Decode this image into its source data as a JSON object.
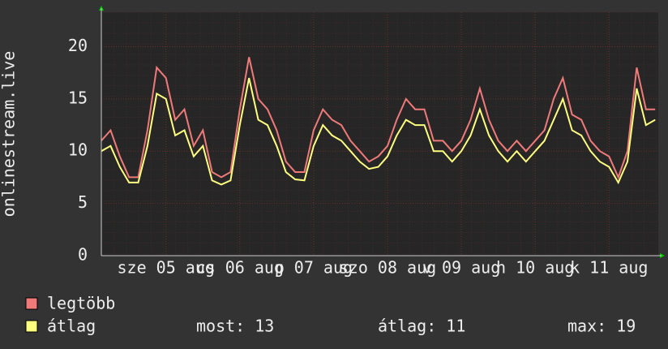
{
  "chart_data": {
    "type": "line",
    "y_label": "onlinestream.live",
    "x": [
      -9,
      -6,
      -3,
      0,
      3,
      6,
      9,
      12,
      15,
      18,
      21,
      24,
      27,
      30,
      33,
      36,
      39,
      42,
      45,
      48,
      51,
      54,
      57,
      60,
      63,
      66,
      69,
      72,
      75,
      78,
      81,
      84,
      87,
      90,
      93,
      96,
      99,
      102,
      105,
      108,
      111,
      114,
      117,
      120,
      123,
      126,
      129,
      132,
      135,
      138,
      141,
      144,
      147,
      150,
      153,
      156,
      159,
      162,
      165,
      168,
      171
    ],
    "series": [
      {
        "name": "legtöbb",
        "color": "#f07a7a",
        "values": [
          11,
          12,
          9.5,
          7.5,
          7.5,
          12,
          18,
          17,
          13,
          14,
          10.5,
          12,
          8,
          7.5,
          8,
          14,
          19,
          15,
          14,
          12,
          9,
          8,
          8,
          12,
          14,
          13,
          12.5,
          11,
          10,
          9,
          9.5,
          10.5,
          13,
          15,
          14,
          14,
          11,
          11,
          10,
          11,
          13,
          16,
          13,
          11,
          10,
          11,
          10,
          11,
          12,
          15,
          17,
          13.5,
          13,
          11,
          10,
          9.5,
          7.5,
          10,
          18,
          14,
          14
        ]
      },
      {
        "name": "átlag",
        "color": "#ffff80",
        "values": [
          10,
          10.5,
          8.5,
          7,
          7,
          10.5,
          15.5,
          15,
          11.5,
          12,
          9.5,
          10.5,
          7.2,
          6.8,
          7.2,
          12.5,
          17,
          13,
          12.5,
          10.5,
          8,
          7.3,
          7.2,
          10.5,
          12.5,
          11.5,
          11,
          10,
          9,
          8.3,
          8.5,
          9.5,
          11.5,
          13,
          12.5,
          12.5,
          10,
          10,
          9,
          10,
          11.5,
          14,
          11.5,
          10,
          9,
          10,
          9,
          10,
          11,
          13,
          15,
          12,
          11.5,
          10,
          9,
          8.5,
          7,
          9,
          16,
          12.5,
          13
        ]
      }
    ],
    "xlim": [
      -9,
      172
    ],
    "xticks": [
      {
        "value": 12,
        "label": "sze 05 aug"
      },
      {
        "value": 36,
        "label": "cs 06 aug"
      },
      {
        "value": 60,
        "label": "p 07 aug"
      },
      {
        "value": 84,
        "label": "szo 08 aug"
      },
      {
        "value": 108,
        "label": "v 09 aug"
      },
      {
        "value": 132,
        "label": "h 10 aug"
      },
      {
        "value": 156,
        "label": "k 11 aug"
      }
    ],
    "ylim": [
      0,
      23.3
    ],
    "yticks": [
      0,
      5,
      10,
      15,
      20
    ],
    "grid": true,
    "stats": [
      "most: 13",
      "átlag: 11",
      "max: 19"
    ]
  }
}
